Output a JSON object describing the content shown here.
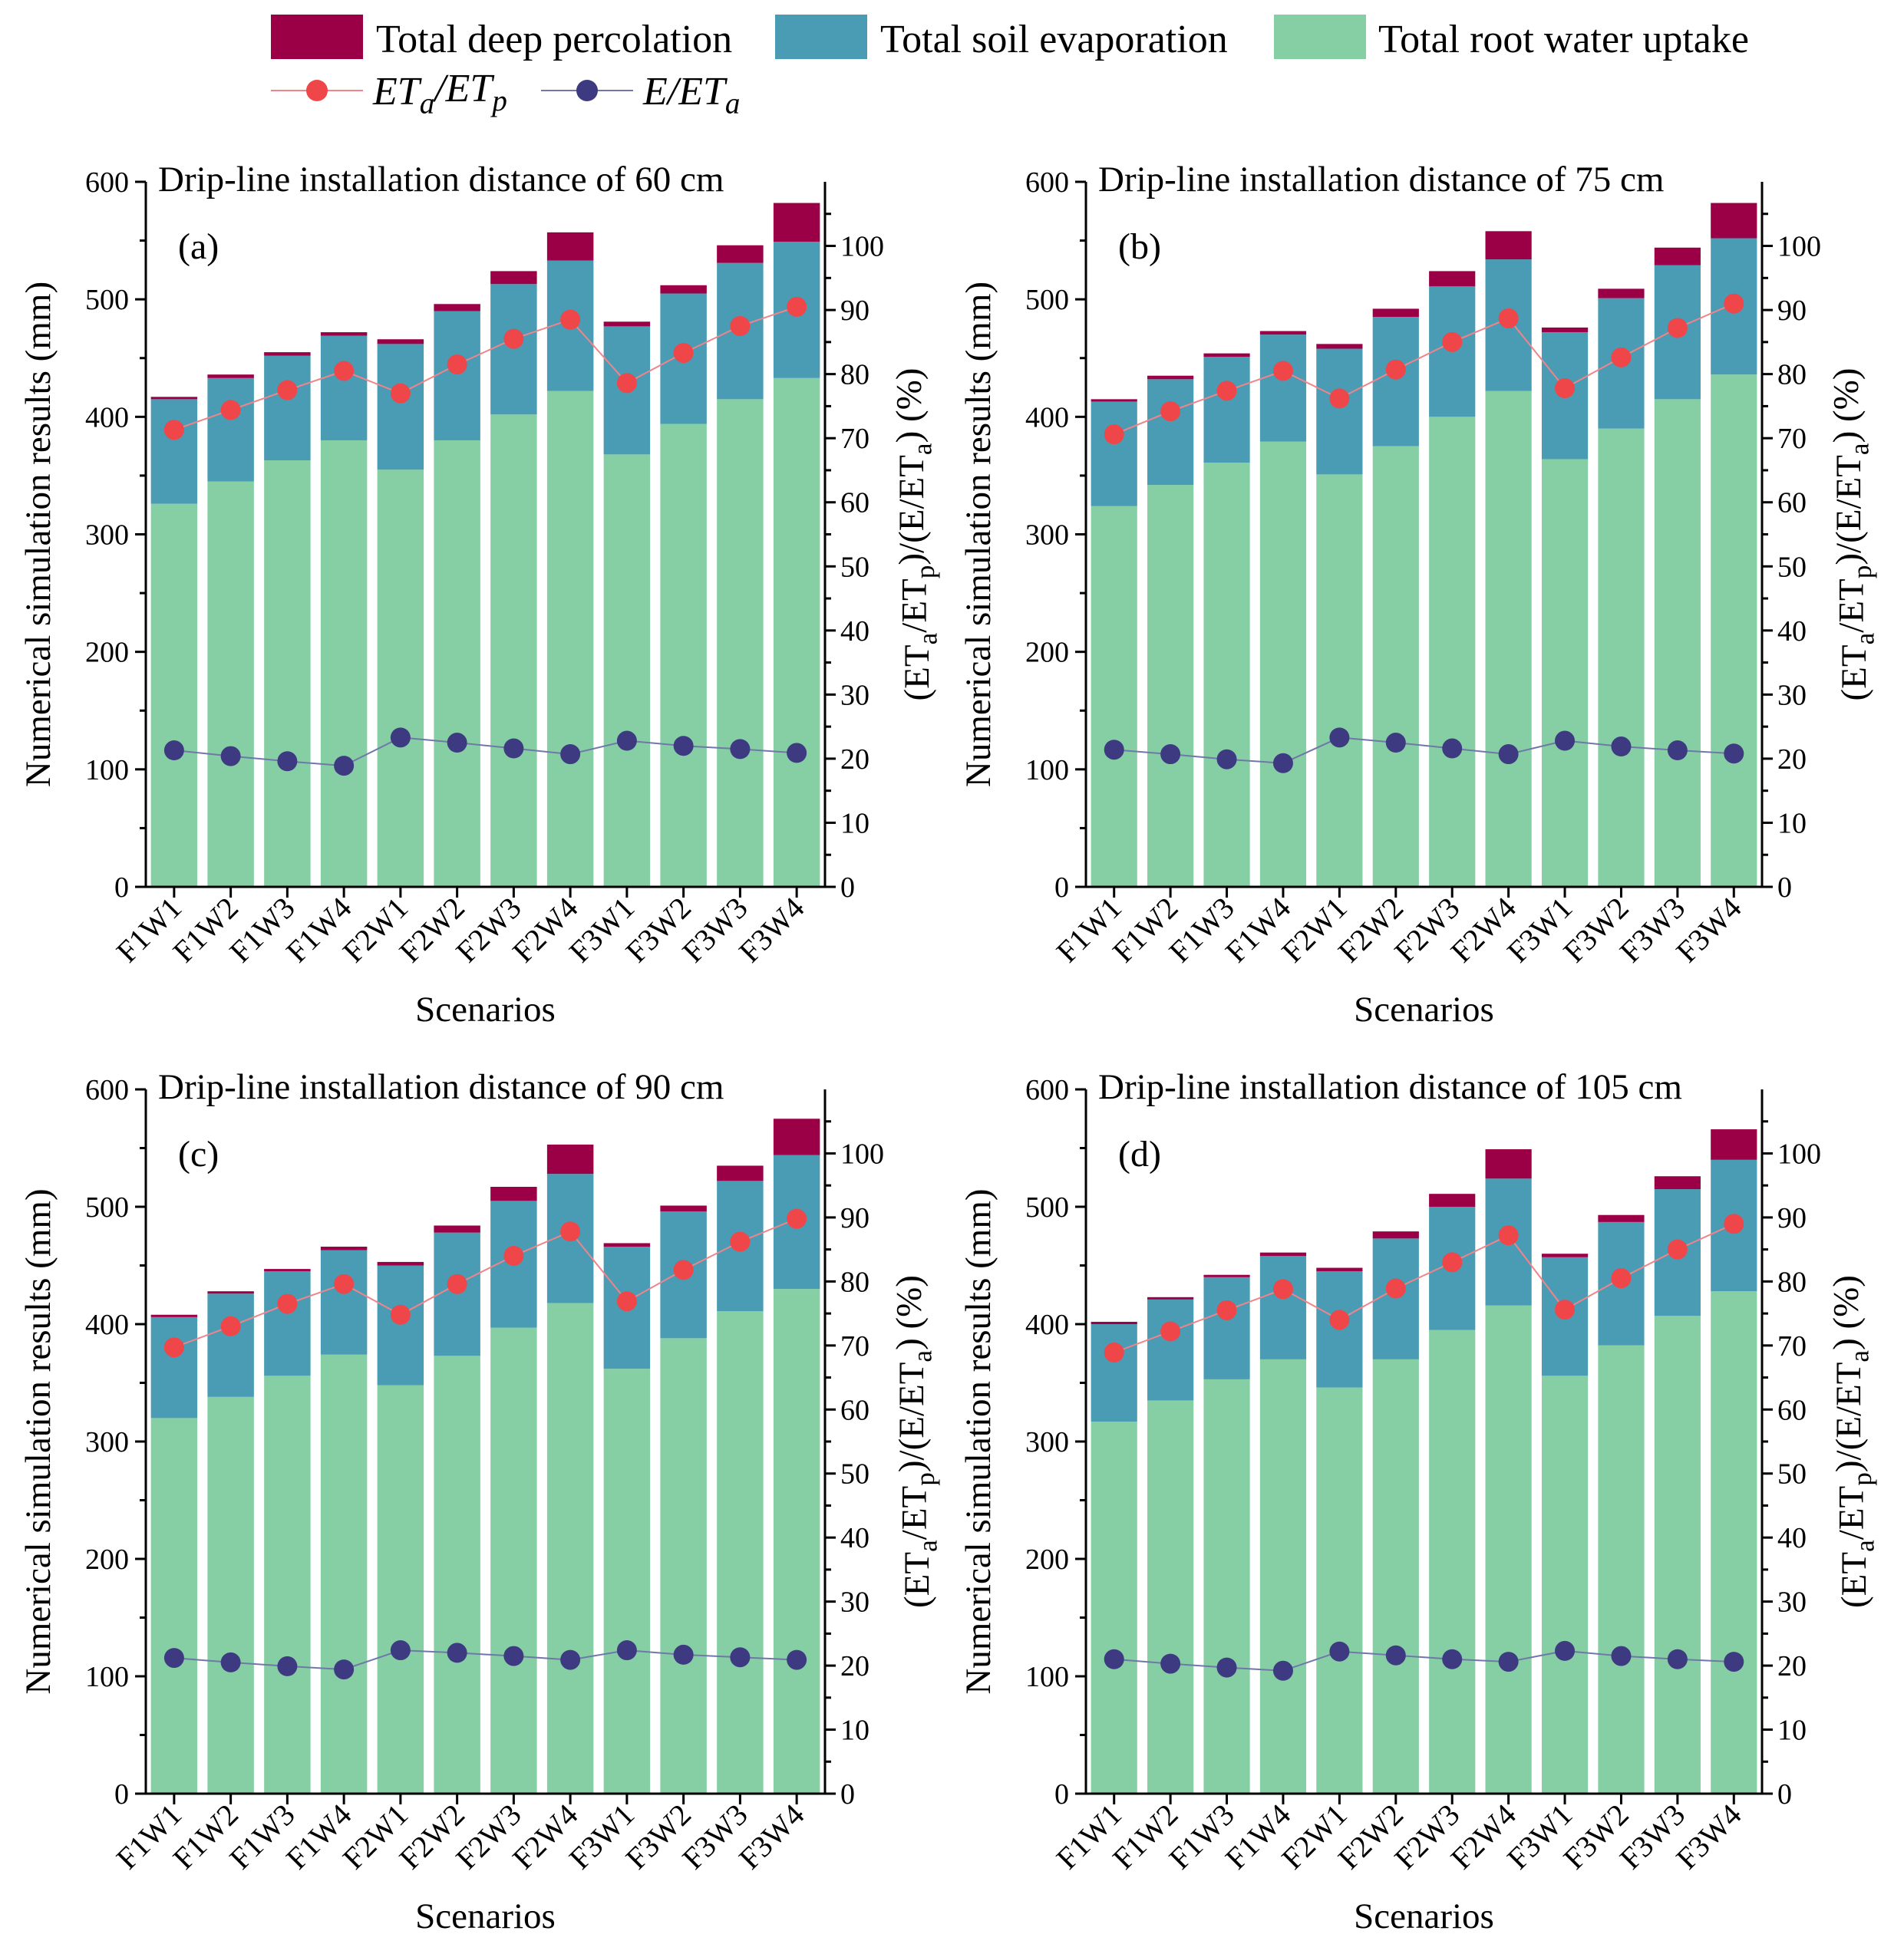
{
  "legend": {
    "deep_percolation": "Total deep percolation",
    "soil_evaporation": "Total soil evaporation",
    "root_water_uptake": "Total root water uptake",
    "eta_etp": "ET_a/ET_p",
    "e_eta": "E/ET_a"
  },
  "colors": {
    "deep_percolation": "#9b0047",
    "soil_evaporation": "#4a9cb4",
    "root_water_uptake": "#86cfa4",
    "eta_etp_line": "#f0848a",
    "eta_etp_marker": "#ee4649",
    "e_eta_line": "#6f78a8",
    "e_eta_marker": "#3e3a82"
  },
  "axes": {
    "xlabel": "Scenarios",
    "ylabel_left": "Numerical simulation results (mm)",
    "ylabel_right": "(ET_a/ET_p)/(E/ET_a) (%)",
    "left_ticks": [
      "0",
      "100",
      "200",
      "300",
      "400",
      "500",
      "600"
    ],
    "right_ticks": [
      "0",
      "10",
      "20",
      "30",
      "40",
      "50",
      "60",
      "70",
      "80",
      "90",
      "100"
    ]
  },
  "chart_data": [
    {
      "type": "bar",
      "stacked": true,
      "label": "(a)",
      "title": "Drip-line installation distance of 60 cm",
      "categories": [
        "F1W1",
        "F1W2",
        "F1W3",
        "F1W4",
        "F2W1",
        "F2W2",
        "F2W3",
        "F2W4",
        "F3W1",
        "F3W2",
        "F3W3",
        "F3W4"
      ],
      "ylim_left": [
        0,
        600
      ],
      "ylim_right": [
        0,
        110
      ],
      "series": [
        {
          "name": "Total root water uptake",
          "axis": "left",
          "values": [
            326,
            345,
            363,
            380,
            355,
            380,
            402,
            422,
            368,
            394,
            415,
            433
          ]
        },
        {
          "name": "Total soil evaporation",
          "axis": "left",
          "values": [
            89,
            88,
            89,
            89,
            107,
            110,
            111,
            111,
            109,
            111,
            116,
            116
          ]
        },
        {
          "name": "Total deep percolation",
          "axis": "left",
          "values": [
            2,
            3,
            3,
            3,
            4,
            6,
            11,
            24,
            4,
            7,
            15,
            33
          ]
        },
        {
          "name": "ET_a/ET_p",
          "axis": "right",
          "type": "line",
          "values": [
            71.3,
            74.4,
            77.5,
            80.5,
            77.0,
            81.5,
            85.5,
            88.5,
            78.6,
            83.3,
            87.5,
            90.5
          ]
        },
        {
          "name": "E/ET_a",
          "axis": "right",
          "type": "line",
          "values": [
            21.3,
            20.4,
            19.6,
            18.9,
            23.3,
            22.5,
            21.6,
            20.7,
            22.8,
            22.0,
            21.5,
            20.9
          ]
        }
      ]
    },
    {
      "type": "bar",
      "stacked": true,
      "label": "(b)",
      "title": "Drip-line installation distance of 75 cm",
      "categories": [
        "F1W1",
        "F1W2",
        "F1W3",
        "F1W4",
        "F2W1",
        "F2W2",
        "F2W3",
        "F2W4",
        "F3W1",
        "F3W2",
        "F3W3",
        "F3W4"
      ],
      "ylim_left": [
        0,
        600
      ],
      "ylim_right": [
        0,
        110
      ],
      "series": [
        {
          "name": "Total root water uptake",
          "axis": "left",
          "values": [
            324,
            342,
            361,
            379,
            351,
            375,
            400,
            422,
            364,
            390,
            415,
            436
          ]
        },
        {
          "name": "Total soil evaporation",
          "axis": "left",
          "values": [
            89,
            90,
            90,
            91,
            107,
            110,
            111,
            112,
            108,
            111,
            114,
            116
          ]
        },
        {
          "name": "Total deep percolation",
          "axis": "left",
          "values": [
            2,
            3,
            3,
            3,
            4,
            7,
            13,
            24,
            4,
            8,
            15,
            30
          ]
        },
        {
          "name": "ET_a/ET_p",
          "axis": "right",
          "type": "line",
          "values": [
            70.6,
            74.2,
            77.4,
            80.5,
            76.2,
            80.7,
            85.0,
            88.7,
            77.8,
            82.6,
            87.2,
            91.0
          ]
        },
        {
          "name": "E/ET_a",
          "axis": "right",
          "type": "line",
          "values": [
            21.4,
            20.7,
            19.9,
            19.3,
            23.3,
            22.5,
            21.6,
            20.7,
            22.8,
            21.9,
            21.3,
            20.8
          ]
        }
      ]
    },
    {
      "type": "bar",
      "stacked": true,
      "label": "(c)",
      "title": "Drip-line installation distance of 90 cm",
      "categories": [
        "F1W1",
        "F1W2",
        "F1W3",
        "F1W4",
        "F2W1",
        "F2W2",
        "F2W3",
        "F2W4",
        "F3W1",
        "F3W2",
        "F3W3",
        "F3W4"
      ],
      "ylim_left": [
        0,
        600
      ],
      "ylim_right": [
        0,
        110
      ],
      "series": [
        {
          "name": "Total root water uptake",
          "axis": "left",
          "values": [
            320,
            338,
            356,
            374,
            348,
            373,
            397,
            418,
            362,
            388,
            411,
            430
          ]
        },
        {
          "name": "Total soil evaporation",
          "axis": "left",
          "values": [
            86,
            88,
            89,
            89,
            102,
            105,
            108,
            110,
            104,
            108,
            111,
            114
          ]
        },
        {
          "name": "Total deep percolation",
          "axis": "left",
          "values": [
            2,
            2,
            2,
            3,
            3,
            6,
            12,
            25,
            3,
            5,
            13,
            31
          ]
        },
        {
          "name": "ET_a/ET_p",
          "axis": "right",
          "type": "line",
          "values": [
            69.7,
            73.0,
            76.5,
            79.6,
            74.8,
            79.6,
            84.0,
            87.8,
            76.9,
            81.8,
            86.2,
            89.8
          ]
        },
        {
          "name": "E/ET_a",
          "axis": "right",
          "type": "line",
          "values": [
            21.2,
            20.5,
            19.9,
            19.4,
            22.4,
            22.0,
            21.5,
            20.9,
            22.4,
            21.7,
            21.3,
            20.9
          ]
        }
      ]
    },
    {
      "type": "bar",
      "stacked": true,
      "label": "(d)",
      "title": "Drip-line installation distance of 105 cm",
      "categories": [
        "F1W1",
        "F1W2",
        "F1W3",
        "F1W4",
        "F2W1",
        "F2W2",
        "F2W3",
        "F2W4",
        "F3W1",
        "F3W2",
        "F3W3",
        "F3W4"
      ],
      "ylim_left": [
        0,
        600
      ],
      "ylim_right": [
        0,
        110
      ],
      "series": [
        {
          "name": "Total root water uptake",
          "axis": "left",
          "values": [
            317,
            335,
            353,
            370,
            346,
            370,
            395,
            416,
            356,
            382,
            407,
            428
          ]
        },
        {
          "name": "Total soil evaporation",
          "axis": "left",
          "values": [
            83,
            86,
            87,
            88,
            99,
            103,
            105,
            108,
            101,
            105,
            108,
            112
          ]
        },
        {
          "name": "Total deep percolation",
          "axis": "left",
          "values": [
            2,
            2,
            2,
            3,
            3,
            6,
            11,
            25,
            3,
            6,
            11,
            26
          ]
        },
        {
          "name": "ET_a/ET_p",
          "axis": "right",
          "type": "line",
          "values": [
            68.9,
            72.2,
            75.5,
            78.8,
            74.0,
            78.9,
            83.0,
            87.2,
            75.6,
            80.5,
            85.0,
            89.0
          ]
        },
        {
          "name": "E/ET_a",
          "axis": "right",
          "type": "line",
          "values": [
            21.0,
            20.3,
            19.7,
            19.2,
            22.2,
            21.6,
            21.0,
            20.6,
            22.3,
            21.5,
            21.0,
            20.6
          ]
        }
      ]
    }
  ]
}
